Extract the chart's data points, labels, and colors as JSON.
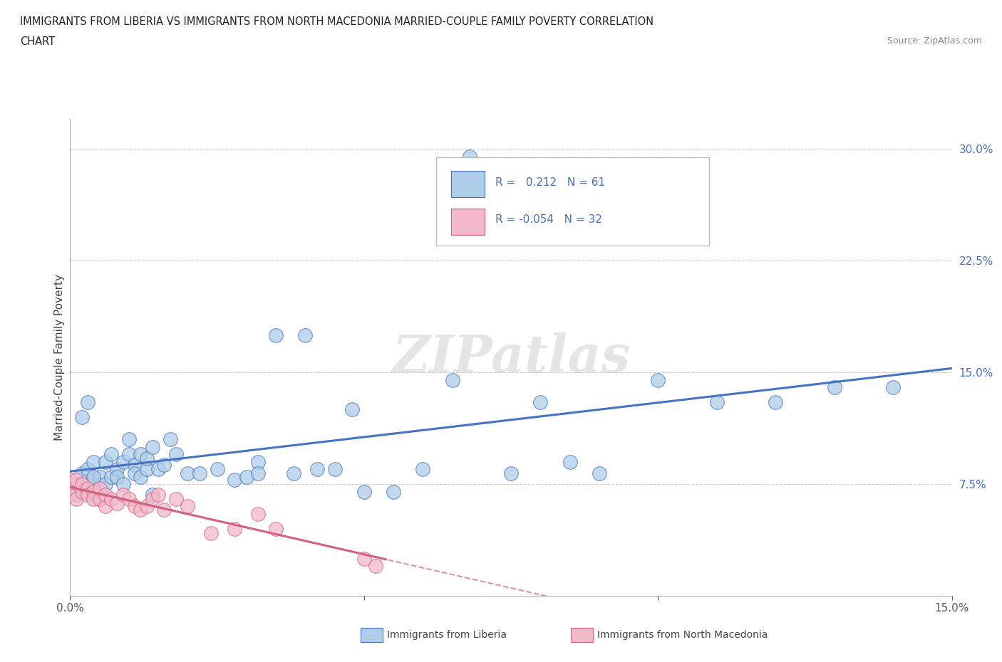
{
  "title_line1": "IMMIGRANTS FROM LIBERIA VS IMMIGRANTS FROM NORTH MACEDONIA MARRIED-COUPLE FAMILY POVERTY CORRELATION",
  "title_line2": "CHART",
  "source_text": "Source: ZipAtlas.com",
  "ylabel": "Married-Couple Family Poverty",
  "xlim": [
    0.0,
    0.15
  ],
  "ylim": [
    0.0,
    0.32
  ],
  "xticks": [
    0.0,
    0.05,
    0.1,
    0.15
  ],
  "xtick_labels": [
    "0.0%",
    "",
    "",
    "15.0%"
  ],
  "yticks": [
    0.0,
    0.075,
    0.15,
    0.225,
    0.3
  ],
  "ytick_labels": [
    "",
    "7.5%",
    "15.0%",
    "22.5%",
    "30.0%"
  ],
  "color_liberia": "#aecde8",
  "color_macedonia": "#f4b8cb",
  "line_color_liberia": "#4472c4",
  "line_color_macedonia": "#d4607a",
  "r_liberia": 0.212,
  "n_liberia": 61,
  "r_macedonia": -0.054,
  "n_macedonia": 32,
  "watermark": "ZIPatlas",
  "liberia_x": [
    0.001,
    0.001,
    0.002,
    0.003,
    0.003,
    0.004,
    0.004,
    0.005,
    0.005,
    0.006,
    0.006,
    0.007,
    0.007,
    0.008,
    0.008,
    0.009,
    0.009,
    0.01,
    0.01,
    0.011,
    0.011,
    0.012,
    0.012,
    0.013,
    0.013,
    0.014,
    0.014,
    0.015,
    0.016,
    0.017,
    0.018,
    0.02,
    0.022,
    0.025,
    0.028,
    0.03,
    0.032,
    0.032,
    0.035,
    0.038,
    0.04,
    0.042,
    0.045,
    0.048,
    0.05,
    0.055,
    0.06,
    0.065,
    0.068,
    0.075,
    0.08,
    0.085,
    0.09,
    0.1,
    0.11,
    0.12,
    0.13,
    0.14,
    0.002,
    0.003,
    0.004
  ],
  "liberia_y": [
    0.068,
    0.075,
    0.082,
    0.07,
    0.085,
    0.075,
    0.09,
    0.065,
    0.08,
    0.075,
    0.09,
    0.08,
    0.095,
    0.085,
    0.08,
    0.075,
    0.09,
    0.095,
    0.105,
    0.088,
    0.082,
    0.095,
    0.08,
    0.085,
    0.092,
    0.068,
    0.1,
    0.085,
    0.088,
    0.105,
    0.095,
    0.082,
    0.082,
    0.085,
    0.078,
    0.08,
    0.09,
    0.082,
    0.175,
    0.082,
    0.175,
    0.085,
    0.085,
    0.125,
    0.07,
    0.07,
    0.085,
    0.145,
    0.295,
    0.082,
    0.13,
    0.09,
    0.082,
    0.145,
    0.13,
    0.13,
    0.14,
    0.14,
    0.12,
    0.13,
    0.08
  ],
  "macedonia_x": [
    0.0,
    0.0,
    0.001,
    0.001,
    0.002,
    0.002,
    0.003,
    0.003,
    0.004,
    0.004,
    0.005,
    0.005,
    0.006,
    0.006,
    0.007,
    0.008,
    0.009,
    0.01,
    0.011,
    0.012,
    0.013,
    0.014,
    0.015,
    0.016,
    0.018,
    0.02,
    0.024,
    0.028,
    0.032,
    0.035,
    0.05,
    0.052
  ],
  "macedonia_y": [
    0.078,
    0.068,
    0.065,
    0.078,
    0.07,
    0.075,
    0.072,
    0.068,
    0.07,
    0.065,
    0.065,
    0.072,
    0.06,
    0.068,
    0.065,
    0.062,
    0.068,
    0.065,
    0.06,
    0.058,
    0.06,
    0.065,
    0.068,
    0.058,
    0.065,
    0.06,
    0.042,
    0.045,
    0.055,
    0.045,
    0.025,
    0.02
  ]
}
